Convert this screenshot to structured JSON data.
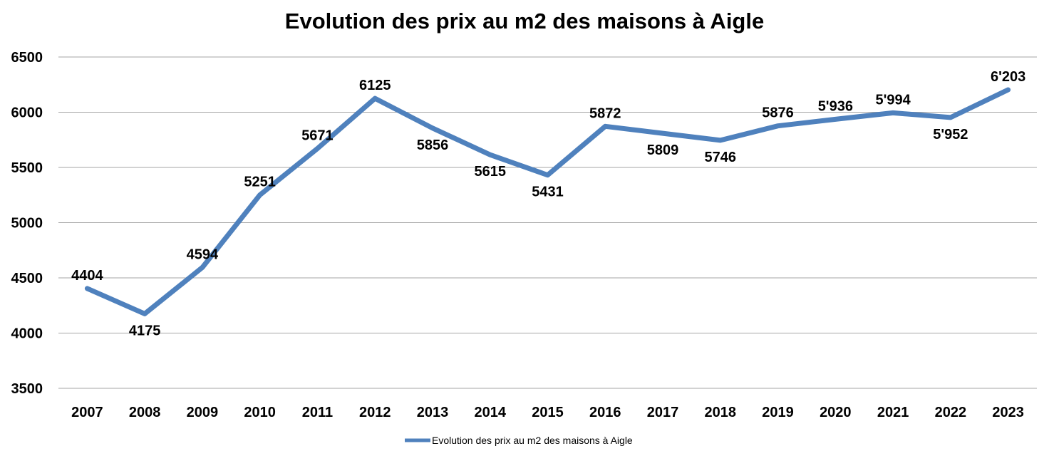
{
  "chart_data": {
    "type": "line",
    "title": "Evolution des prix au m2 des maisons à Aigle",
    "xlabel": "",
    "ylabel": "",
    "ylim": [
      3500,
      6500
    ],
    "yticks": [
      "3500",
      "4000",
      "4500",
      "5000",
      "5500",
      "6000",
      "6500"
    ],
    "grid": true,
    "legend_position": "bottom",
    "categories": [
      "2007",
      "2008",
      "2009",
      "2010",
      "2011",
      "2012",
      "2013",
      "2014",
      "2015",
      "2016",
      "2017",
      "2018",
      "2019",
      "2020",
      "2021",
      "2022",
      "2023"
    ],
    "series": [
      {
        "name": "Evolution des prix au m2 des maisons à Aigle",
        "color": "#4F81BD",
        "values": [
          4404,
          4175,
          4594,
          5251,
          5671,
          6125,
          5856,
          5615,
          5431,
          5872,
          5809,
          5746,
          5876,
          5936,
          5994,
          5952,
          6203
        ],
        "data_labels": [
          "4404",
          "4175",
          "4594",
          "5251",
          "5671",
          "6125",
          "5856",
          "5615",
          "5431",
          "5872",
          "5809",
          "5746",
          "5876",
          "5'936",
          "5'994",
          "5'952",
          "6'203"
        ],
        "label_positions": [
          "above",
          "below",
          "above",
          "above",
          "above",
          "above",
          "below",
          "below",
          "below",
          "above",
          "below",
          "below",
          "above",
          "above",
          "above",
          "below",
          "above"
        ]
      }
    ]
  }
}
